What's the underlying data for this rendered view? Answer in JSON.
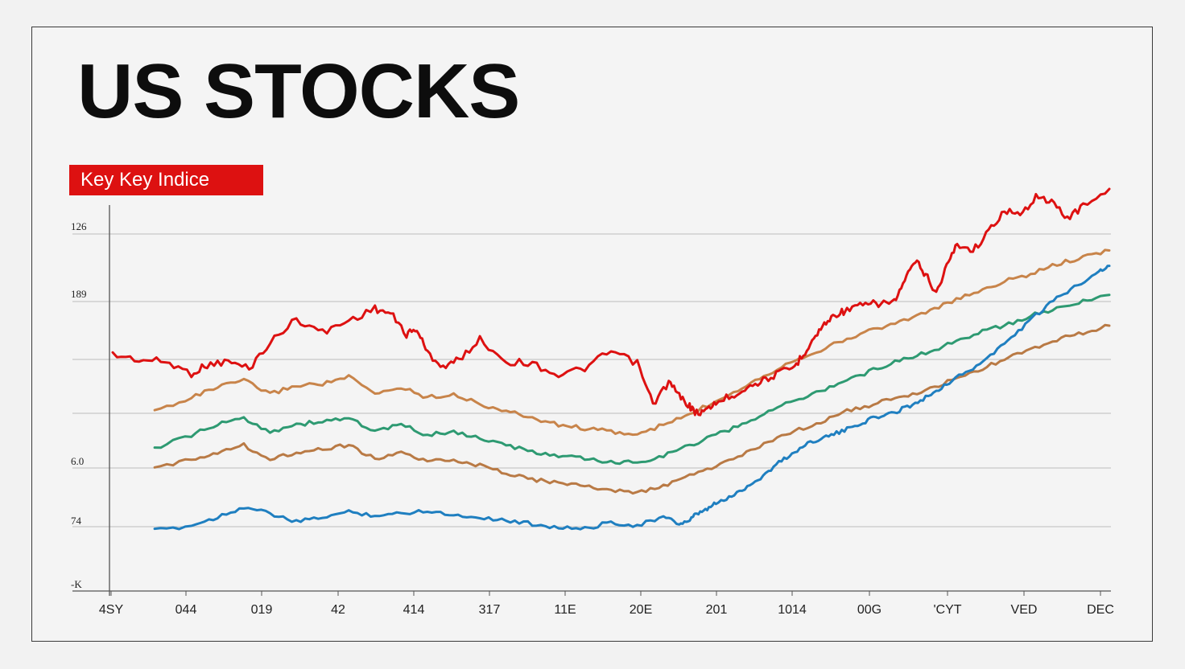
{
  "title": "US STOCKS",
  "badge": "Key Key Indice",
  "colors": {
    "accent": "#dd1111",
    "text": "#0d0d0d",
    "grid": "#bdbdbd",
    "background": "#f2f2f2"
  },
  "chart_data": {
    "type": "line",
    "title": "US STOCKS",
    "subtitle": "Key Key Indice",
    "grid": true,
    "legend": "none",
    "y_tick_labels": [
      "126",
      "189",
      "",
      "",
      "6.0",
      "74",
      "-K"
    ],
    "x_tick_labels": [
      "4SY",
      "044",
      "019",
      "42",
      "414",
      "317",
      "11E",
      "20E",
      "201",
      "1014",
      "00G",
      "'CYT",
      "VED",
      "DEC"
    ],
    "series_colors": [
      "#dd1111",
      "#1f7fc0",
      "#c8844a",
      "#2e9a72",
      "#b97a45"
    ],
    "series": [
      {
        "color": "#dd1111",
        "x": [
          0,
          0.05,
          0.1,
          0.15,
          0.18,
          0.22,
          0.26,
          0.3,
          0.35,
          0.4,
          0.45,
          0.5,
          0.53,
          0.56,
          0.58,
          0.6,
          0.63,
          0.66,
          0.7,
          0.75,
          0.8,
          0.85,
          0.9,
          0.95,
          1,
          1.03,
          1.06,
          1.08,
          1.1,
          1.11,
          1.13,
          1.15,
          1.18,
          1.21,
          1.24,
          1.27,
          1.3,
          1.32,
          1.34,
          1.36,
          1.38,
          1.4,
          1.43,
          1.46,
          1.49,
          1.51,
          1.53,
          1.55,
          1.57,
          1.59,
          1.61,
          1.64,
          1.67,
          1.7,
          1.73,
          1.76,
          1.79,
          1.82,
          1.85,
          1.9
        ],
        "y": [
          103,
          100,
          99,
          92,
          97,
          99,
          95,
          110,
          124,
          116,
          123,
          130,
          127,
          115,
          118,
          104,
          96,
          100,
          112,
          99,
          98,
          91,
          95,
          105,
          98,
          74,
          87,
          79,
          73,
          69,
          70,
          75,
          79,
          84,
          88,
          92,
          96,
          105,
          114,
          122,
          127,
          129,
          132,
          133,
          134,
          146,
          158,
          150,
          139,
          155,
          168,
          164,
          175,
          188,
          184,
          196,
          192,
          183,
          190,
          200
        ]
      },
      {
        "color": "#1f7fc0",
        "x": [
          0.08,
          0.15,
          0.2,
          0.25,
          0.3,
          0.35,
          0.4,
          0.45,
          0.5,
          0.55,
          0.6,
          0.65,
          0.7,
          0.75,
          0.8,
          0.85,
          0.9,
          0.95,
          1,
          1.05,
          1.08,
          1.1,
          1.11,
          1.13,
          1.15,
          1.18,
          1.21,
          1.24,
          1.27,
          1.3,
          1.33,
          1.36,
          1.39,
          1.42,
          1.45,
          1.48,
          1.51,
          1.54,
          1.57,
          1.6,
          1.64,
          1.68,
          1.72,
          1.76,
          1.8,
          1.84,
          1.88,
          1.9
        ],
        "y": [
          0,
          3,
          8,
          14,
          10,
          5,
          8,
          11,
          9,
          10,
          12,
          9,
          8,
          6,
          4,
          2,
          1,
          5,
          3,
          8,
          4,
          6,
          9,
          12,
          16,
          20,
          26,
          32,
          40,
          46,
          52,
          55,
          58,
          62,
          66,
          68,
          72,
          76,
          82,
          88,
          95,
          104,
          115,
          126,
          136,
          144,
          152,
          155
        ]
      },
      {
        "color": "#c8844a",
        "x": [
          0.08,
          0.15,
          0.2,
          0.25,
          0.3,
          0.35,
          0.4,
          0.45,
          0.5,
          0.55,
          0.6,
          0.65,
          0.7,
          0.75,
          0.8,
          0.85,
          0.9,
          0.95,
          1,
          1.05,
          1.1,
          1.15,
          1.2,
          1.25,
          1.3,
          1.35,
          1.4,
          1.45,
          1.5,
          1.55,
          1.6,
          1.65,
          1.7,
          1.75,
          1.8,
          1.85,
          1.9
        ],
        "y": [
          70,
          78,
          84,
          88,
          80,
          85,
          86,
          90,
          80,
          84,
          78,
          80,
          74,
          70,
          66,
          62,
          60,
          58,
          56,
          62,
          68,
          76,
          84,
          92,
          100,
          106,
          112,
          118,
          122,
          128,
          134,
          140,
          146,
          150,
          156,
          160,
          164
        ]
      },
      {
        "color": "#2e9a72",
        "x": [
          0.08,
          0.15,
          0.2,
          0.25,
          0.3,
          0.35,
          0.4,
          0.45,
          0.5,
          0.55,
          0.6,
          0.65,
          0.7,
          0.75,
          0.8,
          0.85,
          0.9,
          0.95,
          1,
          1.05,
          1.1,
          1.15,
          1.2,
          1.25,
          1.3,
          1.35,
          1.4,
          1.45,
          1.5,
          1.55,
          1.6,
          1.65,
          1.7,
          1.75,
          1.8,
          1.85,
          1.9
        ],
        "y": [
          48,
          56,
          62,
          66,
          58,
          62,
          64,
          66,
          58,
          62,
          56,
          58,
          54,
          50,
          46,
          44,
          42,
          40,
          40,
          44,
          50,
          56,
          62,
          70,
          76,
          82,
          88,
          94,
          100,
          104,
          110,
          116,
          120,
          126,
          130,
          134,
          138
        ]
      },
      {
        "color": "#b97a45",
        "x": [
          0.08,
          0.15,
          0.2,
          0.25,
          0.3,
          0.35,
          0.4,
          0.45,
          0.5,
          0.55,
          0.6,
          0.65,
          0.7,
          0.75,
          0.8,
          0.85,
          0.9,
          0.95,
          1,
          1.05,
          1.1,
          1.15,
          1.2,
          1.25,
          1.3,
          1.35,
          1.4,
          1.45,
          1.5,
          1.55,
          1.6,
          1.65,
          1.7,
          1.75,
          1.8,
          1.85,
          1.9
        ],
        "y": [
          36,
          42,
          46,
          50,
          42,
          46,
          48,
          50,
          42,
          46,
          40,
          42,
          38,
          34,
          30,
          28,
          26,
          24,
          22,
          26,
          32,
          38,
          44,
          52,
          58,
          64,
          70,
          74,
          78,
          82,
          88,
          94,
          100,
          106,
          112,
          116,
          120
        ]
      }
    ]
  }
}
